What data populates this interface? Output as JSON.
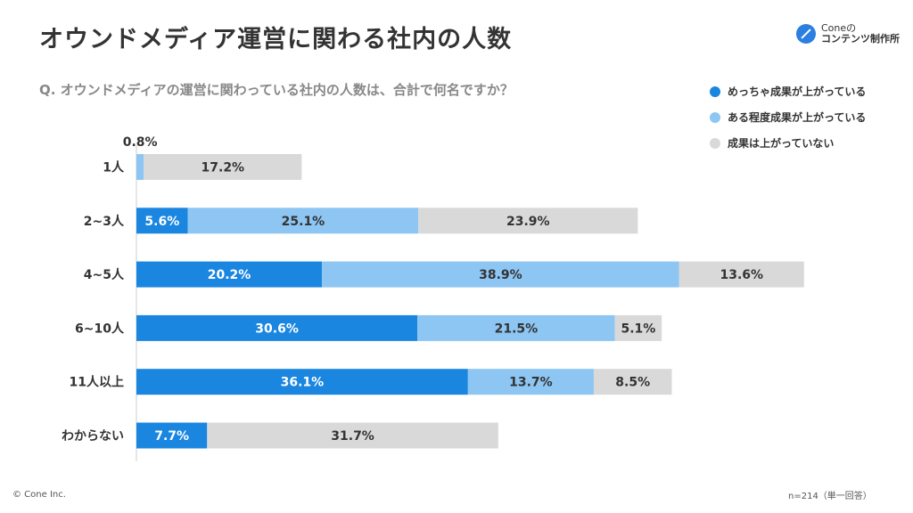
{
  "header": {
    "title": "オウンドメディア運営に関わる社内の人数",
    "logo_top": "Coneの",
    "logo_bottom": "コンテンツ制作所"
  },
  "question": "Q.  オウンドメディアの運営に関わっている社内の人数は、合計で何名ですか？",
  "footer": {
    "copyright": "© Cone Inc.",
    "note": "n=214（単一回答）"
  },
  "colors": {
    "dark_blue": "#1a86e0",
    "light_blue": "#8dc5f3",
    "gray": "#d9d9d9"
  },
  "chart_data": {
    "type": "bar",
    "orientation": "horizontal",
    "stacked": true,
    "categories": [
      "1人",
      "2~3人",
      "4~5人",
      "6~10人",
      "11人以上",
      "わからない"
    ],
    "series": [
      {
        "name": "めっちゃ成果が上がっている",
        "color": "#1a86e0",
        "values": [
          0,
          5.6,
          20.2,
          30.6,
          36.1,
          7.7
        ],
        "labels": [
          "",
          "5.6%",
          "20.2%",
          "30.6%",
          "36.1%",
          "7.7%"
        ]
      },
      {
        "name": "ある程度成果が上がっている",
        "color": "#8dc5f3",
        "values": [
          0.8,
          25.1,
          38.9,
          21.5,
          13.7,
          0
        ],
        "labels": [
          "0.8%",
          "25.1%",
          "38.9%",
          "21.5%",
          "13.7%",
          ""
        ]
      },
      {
        "name": "成果は上がっていない",
        "color": "#d9d9d9",
        "values": [
          17.2,
          23.9,
          13.6,
          5.1,
          8.5,
          31.7
        ],
        "labels": [
          "17.2%",
          "23.9%",
          "13.6%",
          "5.1%",
          "8.5%",
          "31.7%"
        ]
      }
    ],
    "xlim": [
      0,
      100
    ],
    "legend_position": "top-right"
  }
}
